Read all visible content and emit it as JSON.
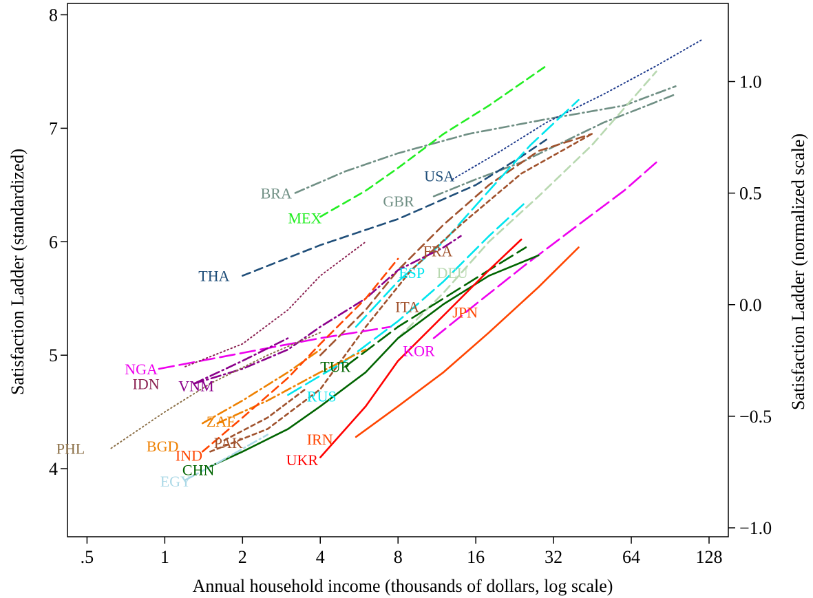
{
  "chart_data": {
    "type": "line",
    "xlabel": "Annual household income (thousands of dollars, log scale)",
    "ylabel": "Satisfaction Ladder (standardized)",
    "y2label": "Satisfaction Ladder (normalized scale)",
    "xscale": "log2",
    "xlim": [
      0.42,
      152
    ],
    "ylim": [
      3.4,
      8.1
    ],
    "y2lim": [
      -1.04,
      1.35
    ],
    "x_ticks": [
      0.5,
      1,
      2,
      4,
      8,
      16,
      32,
      64,
      128
    ],
    "x_tick_labels": [
      ".5",
      "1",
      "2",
      "4",
      "8",
      "16",
      "32",
      "64",
      "128"
    ],
    "y_ticks": [
      4,
      5,
      6,
      7,
      8
    ],
    "y_tick_labels": [
      "4",
      "5",
      "6",
      "7",
      "8"
    ],
    "y2_ticks": [
      -1.0,
      -0.5,
      0.0,
      0.5,
      1.0
    ],
    "y2_tick_labels": [
      "−1.0",
      "−0.5",
      "0.0",
      "0.5",
      "1.0"
    ],
    "grid": false,
    "legend": "none",
    "series": [
      {
        "name": "BRA",
        "color": "#6f8f84",
        "dash": "dashdot",
        "x": [
          3.2,
          5,
          8,
          15,
          30,
          60,
          95
        ],
        "y": [
          6.43,
          6.62,
          6.78,
          6.95,
          7.08,
          7.2,
          7.37
        ]
      },
      {
        "name": "MEX",
        "color": "#22ee22",
        "dash": "dash",
        "x": [
          4,
          6,
          8,
          12,
          18,
          30
        ],
        "y": [
          6.22,
          6.45,
          6.65,
          6.95,
          7.2,
          7.55
        ]
      },
      {
        "name": "USA",
        "color": "#1f3b8c",
        "dash": "dot",
        "x": [
          13,
          20,
          30,
          50,
          80,
          120
        ],
        "y": [
          6.55,
          6.8,
          7.05,
          7.3,
          7.55,
          7.78
        ]
      },
      {
        "name": "GBR",
        "color": "#6f8f84",
        "dash": "dashdot",
        "x": [
          11,
          16,
          24,
          35,
          50,
          70,
          95
        ],
        "y": [
          6.4,
          6.55,
          6.7,
          6.88,
          7.05,
          7.18,
          7.3
        ]
      },
      {
        "name": "THA",
        "color": "#1f4e79",
        "dash": "dash",
        "x": [
          2,
          4,
          8,
          16,
          24,
          30
        ],
        "y": [
          5.7,
          5.97,
          6.2,
          6.5,
          6.75,
          6.9
        ]
      },
      {
        "name": "FRA",
        "color": "#a0522d",
        "dash": "dash",
        "x": [
          4,
          6,
          8,
          12,
          18,
          28,
          45
        ],
        "y": [
          5.0,
          5.4,
          5.75,
          6.15,
          6.5,
          6.8,
          6.95
        ]
      },
      {
        "name": "ESP",
        "color": "#00e5ee",
        "dash": "longdash",
        "x": [
          5.5,
          8,
          12,
          18,
          26,
          40
        ],
        "y": [
          5.25,
          5.65,
          6.0,
          6.45,
          6.85,
          7.25
        ]
      },
      {
        "name": "DEU",
        "color": "#b8d8b0",
        "dash": "dash",
        "x": [
          8,
          12,
          18,
          28,
          45,
          80
        ],
        "y": [
          5.15,
          5.55,
          6.0,
          6.4,
          6.85,
          7.5
        ]
      },
      {
        "name": "ITA",
        "color": "#a0522d",
        "dash": "shortdash",
        "x": [
          1.5,
          2.5,
          4,
          6,
          9,
          14,
          24,
          45
        ],
        "y": [
          4.15,
          4.35,
          4.7,
          5.25,
          5.75,
          6.15,
          6.6,
          6.95
        ]
      },
      {
        "name": "JPN",
        "color": "#ee00ee",
        "dash": "longdash",
        "x": [
          11,
          16,
          25,
          40,
          60,
          80
        ],
        "y": [
          5.15,
          5.45,
          5.8,
          6.15,
          6.45,
          6.7
        ]
      },
      {
        "name": "KOR",
        "color": "#ee00ee",
        "dash": "longdash",
        "x": [
          0.95,
          2,
          4,
          7.5
        ],
        "y": [
          4.88,
          5.02,
          5.15,
          5.25
        ]
      },
      {
        "name": "TUR",
        "color": "#006400",
        "dash": "longdash",
        "x": [
          5,
          8,
          12,
          18,
          25
        ],
        "y": [
          4.9,
          5.25,
          5.5,
          5.75,
          5.95
        ]
      },
      {
        "name": "RUS",
        "color": "#00e5ee",
        "dash": "longdash",
        "x": [
          3,
          5,
          8,
          12,
          18,
          25
        ],
        "y": [
          4.65,
          4.95,
          5.3,
          5.65,
          6.05,
          6.35
        ]
      },
      {
        "name": "CHN",
        "color": "#006400",
        "dash": "solid",
        "x": [
          1.5,
          2,
          3,
          4,
          6,
          8,
          12,
          18,
          28
        ],
        "y": [
          4.02,
          4.15,
          4.35,
          4.55,
          4.85,
          5.15,
          5.45,
          5.7,
          5.88
        ]
      },
      {
        "name": "EGY",
        "color": "#aad8e6",
        "dash": "dashdot",
        "x": [
          1.2,
          1.6,
          2.5
        ],
        "y": [
          3.9,
          4.05,
          4.3
        ]
      },
      {
        "name": "UKR",
        "color": "#ff0000",
        "dash": "solid",
        "x": [
          4,
          6,
          8,
          12,
          18,
          24
        ],
        "y": [
          4.1,
          4.55,
          4.95,
          5.35,
          5.75,
          6.02
        ]
      },
      {
        "name": "IRN",
        "color": "#ff4500",
        "dash": "solid",
        "x": [
          5.5,
          8,
          12,
          18,
          28,
          40
        ],
        "y": [
          4.28,
          4.55,
          4.85,
          5.2,
          5.6,
          5.95
        ]
      },
      {
        "name": "NGA",
        "color": "#8b2252",
        "dash": "dot",
        "x": [
          1.2,
          2,
          3,
          4,
          6
        ],
        "y": [
          4.9,
          5.1,
          5.4,
          5.7,
          6.0
        ]
      },
      {
        "name": "IDN",
        "color": "#8b008b",
        "dash": "dashdot",
        "x": [
          1.3,
          2,
          3,
          4,
          6,
          8,
          12,
          14
        ],
        "y": [
          4.75,
          4.88,
          5.05,
          5.25,
          5.5,
          5.75,
          5.95,
          6.05
        ]
      },
      {
        "name": "VNM",
        "color": "#8b008b",
        "dash": "dashdot",
        "x": [
          1.3,
          2,
          3
        ],
        "y": [
          4.75,
          4.95,
          5.15
        ]
      },
      {
        "name": "PHL",
        "color": "#8b6f47",
        "dash": "dot",
        "x": [
          0.62,
          1,
          1.5,
          2.5,
          4
        ],
        "y": [
          4.18,
          4.5,
          4.75,
          5.0,
          5.2
        ]
      },
      {
        "name": "BGD",
        "color": "#ee8000",
        "dash": "dashdot",
        "x": [
          1.4,
          2,
          3,
          4
        ],
        "y": [
          4.4,
          4.6,
          4.85,
          5.05
        ]
      },
      {
        "name": "ZAF",
        "color": "#ee8000",
        "dash": "dashdot",
        "x": [
          1.6,
          2.5,
          4,
          6
        ],
        "y": [
          4.4,
          4.6,
          4.85,
          5.05
        ]
      },
      {
        "name": "PAK",
        "color": "#a0522d",
        "dash": "shortdash",
        "x": [
          1.7,
          2.5,
          3.5
        ],
        "y": [
          4.25,
          4.45,
          4.7
        ]
      },
      {
        "name": "IND",
        "color": "#ff4500",
        "dash": "dash",
        "x": [
          1.4,
          2,
          3,
          4,
          6,
          8
        ],
        "y": [
          4.15,
          4.45,
          4.8,
          5.1,
          5.5,
          5.85
        ]
      }
    ],
    "labels": [
      {
        "text": "BRA",
        "x": 2.35,
        "y": 6.43,
        "color": "#6f8f84"
      },
      {
        "text": "MEX",
        "x": 3.0,
        "y": 6.21,
        "color": "#22ee22"
      },
      {
        "text": "USA",
        "x": 10.1,
        "y": 6.58,
        "color": "#1f4e79"
      },
      {
        "text": "GBR",
        "x": 7.0,
        "y": 6.36,
        "color": "#6f8f84"
      },
      {
        "text": "THA",
        "x": 1.35,
        "y": 5.7,
        "color": "#1f4e79"
      },
      {
        "text": "FRA",
        "x": 10.0,
        "y": 5.92,
        "color": "#a0522d"
      },
      {
        "text": "ESP",
        "x": 8.05,
        "y": 5.73,
        "color": "#00e5ee"
      },
      {
        "text": "DEU",
        "x": 11.3,
        "y": 5.73,
        "color": "#b8d8b0"
      },
      {
        "text": "ITA",
        "x": 7.8,
        "y": 5.43,
        "color": "#a0522d"
      },
      {
        "text": "JPN",
        "x": 13.0,
        "y": 5.38,
        "color": "#ff4500"
      },
      {
        "text": "KOR",
        "x": 8.35,
        "y": 5.04,
        "color": "#ee00ee"
      },
      {
        "text": "TUR",
        "x": 4.0,
        "y": 4.9,
        "color": "#006400"
      },
      {
        "text": "RUS",
        "x": 3.55,
        "y": 4.64,
        "color": "#00e5ee"
      },
      {
        "text": "CHN",
        "x": 1.17,
        "y": 3.99,
        "color": "#006400"
      },
      {
        "text": "EGY",
        "x": 0.96,
        "y": 3.89,
        "color": "#aad8e6"
      },
      {
        "text": "UKR",
        "x": 2.95,
        "y": 4.08,
        "color": "#ff0000"
      },
      {
        "text": "IRN",
        "x": 3.55,
        "y": 4.26,
        "color": "#ff4500"
      },
      {
        "text": "NGA",
        "x": 0.7,
        "y": 4.88,
        "color": "#ee00ee"
      },
      {
        "text": "IDN",
        "x": 0.75,
        "y": 4.75,
        "color": "#8b2252"
      },
      {
        "text": "VNM",
        "x": 1.13,
        "y": 4.73,
        "color": "#8b008b"
      },
      {
        "text": "PHL",
        "x": 0.38,
        "y": 4.18,
        "color": "#8b6f47"
      },
      {
        "text": "BGD",
        "x": 0.85,
        "y": 4.2,
        "color": "#ee8000"
      },
      {
        "text": "ZAF",
        "x": 1.45,
        "y": 4.42,
        "color": "#ee8000"
      },
      {
        "text": "PAK",
        "x": 1.55,
        "y": 4.23,
        "color": "#a0522d"
      },
      {
        "text": "IND",
        "x": 1.1,
        "y": 4.12,
        "color": "#ff4500"
      }
    ]
  }
}
